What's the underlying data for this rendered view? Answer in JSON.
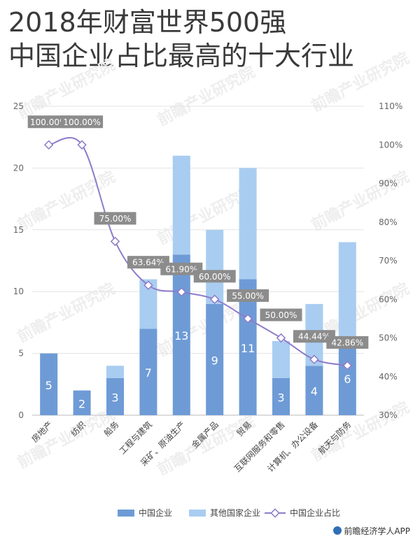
{
  "title_lines": [
    "2018年财富世界500强",
    "中国企业占比最高的十大行业"
  ],
  "credit": "前瞻经济学人APP",
  "watermark": "前瞻产业研究院",
  "chart_data": {
    "type": "bar",
    "stacked": true,
    "categories": [
      "房地产",
      "纺织",
      "船务",
      "工程与建筑",
      "采矿、原油生产",
      "金属产品",
      "贸易",
      "互联网服务和零售",
      "计算机、办公设备",
      "航天与防务"
    ],
    "series": [
      {
        "name": "中国企业",
        "type": "bar",
        "values": [
          5,
          2,
          3,
          7,
          13,
          9,
          11,
          3,
          4,
          6
        ],
        "color": "#6e9bd6"
      },
      {
        "name": "其他国家企业",
        "type": "bar",
        "values": [
          0,
          0,
          1,
          4,
          8,
          6,
          9,
          3,
          5,
          8
        ],
        "color": "#a9cdf1"
      },
      {
        "name": "中国企业占比",
        "type": "line",
        "axis": "right",
        "values": [
          100,
          100,
          75,
          63.64,
          61.9,
          60,
          55,
          50,
          44.44,
          42.86
        ],
        "labels": [
          "100.00%",
          "100.00%",
          "75.00%",
          "63.64%",
          "61.90%",
          "60.00%",
          "55.00%",
          "50.00%",
          "44.44%",
          "42.86%"
        ],
        "color": "#8e7cc9"
      }
    ],
    "y_left": {
      "min": 0,
      "max": 25,
      "ticks": [
        "0",
        "5",
        "10",
        "15",
        "20",
        "25"
      ]
    },
    "y_right": {
      "min": 30,
      "max": 110,
      "ticks": [
        "30%",
        "40%",
        "50%",
        "60%",
        "70%",
        "80%",
        "90%",
        "100%",
        "110%"
      ]
    },
    "grid": true,
    "legend_position": "bottom"
  }
}
